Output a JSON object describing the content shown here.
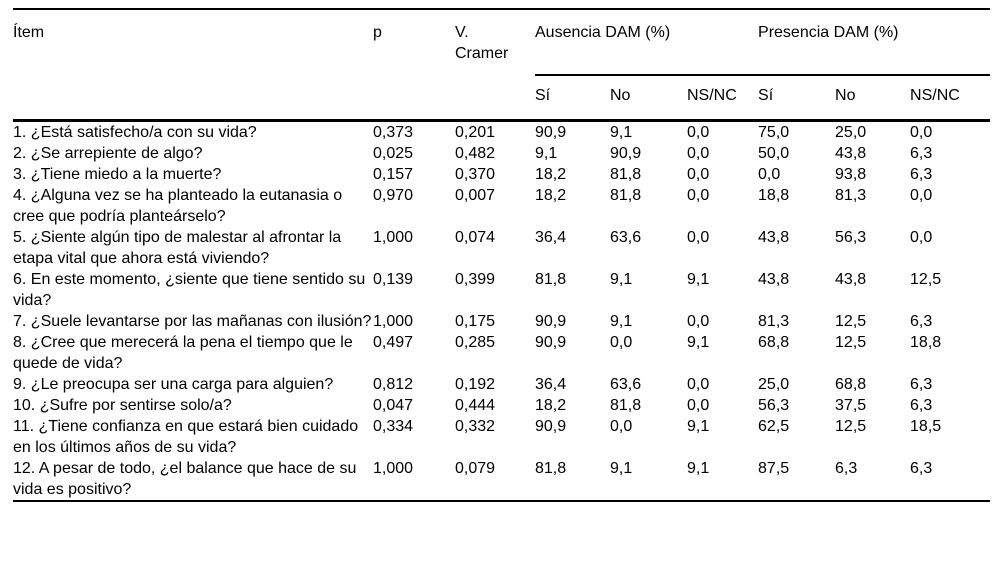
{
  "header": {
    "item": "Ítem",
    "p": "p",
    "v_cramer": "V. Cramer",
    "group_ausencia": "Ausencia DAM (%)",
    "group_presencia": "Presencia DAM (%)",
    "sub": {
      "si": "Sí",
      "no": "No",
      "nsnc": "NS/NC"
    }
  },
  "rows": [
    {
      "item": "1. ¿Está satisfecho/a con su vida?",
      "p": "0,373",
      "v": "0,201",
      "a_si": "90,9",
      "a_no": "9,1",
      "a_nsnc": "0,0",
      "p_si": "75,0",
      "p_no": "25,0",
      "p_nsnc": "0,0"
    },
    {
      "item": "2. ¿Se arrepiente de algo?",
      "p": "0,025",
      "v": "0,482",
      "a_si": "9,1",
      "a_no": "90,9",
      "a_nsnc": "0,0",
      "p_si": "50,0",
      "p_no": "43,8",
      "p_nsnc": "6,3"
    },
    {
      "item": "3. ¿Tiene miedo a la muerte?",
      "p": "0,157",
      "v": "0,370",
      "a_si": "18,2",
      "a_no": "81,8",
      "a_nsnc": "0,0",
      "p_si": "0,0",
      "p_no": "93,8",
      "p_nsnc": "6,3"
    },
    {
      "item": "4. ¿Alguna vez se ha planteado la eutanasia o cree que podría planteárselo?",
      "p": "0,970",
      "v": "0,007",
      "a_si": "18,2",
      "a_no": "81,8",
      "a_nsnc": "0,0",
      "p_si": "18,8",
      "p_no": "81,3",
      "p_nsnc": "0,0"
    },
    {
      "item": "5. ¿Siente algún tipo de malestar al afrontar la etapa vital que ahora está viviendo?",
      "p": "1,000",
      "v": "0,074",
      "a_si": "36,4",
      "a_no": "63,6",
      "a_nsnc": "0,0",
      "p_si": "43,8",
      "p_no": "56,3",
      "p_nsnc": "0,0"
    },
    {
      "item": "6. En este momento, ¿siente que tiene sentido su vida?",
      "p": "0,139",
      "v": "0,399",
      "a_si": "81,8",
      "a_no": "9,1",
      "a_nsnc": "9,1",
      "p_si": "43,8",
      "p_no": "43,8",
      "p_nsnc": "12,5"
    },
    {
      "item": "7. ¿Suele levantarse por las mañanas con ilusión?",
      "p": "1,000",
      "v": "0,175",
      "a_si": "90,9",
      "a_no": "9,1",
      "a_nsnc": "0,0",
      "p_si": "81,3",
      "p_no": "12,5",
      "p_nsnc": "6,3"
    },
    {
      "item": "8. ¿Cree que merecerá la pena el tiempo que le quede de vida?",
      "p": "0,497",
      "v": "0,285",
      "a_si": "90,9",
      "a_no": "0,0",
      "a_nsnc": "9,1",
      "p_si": "68,8",
      "p_no": "12,5",
      "p_nsnc": "18,8"
    },
    {
      "item": "9. ¿Le preocupa ser una carga para alguien?",
      "p": "0,812",
      "v": "0,192",
      "a_si": "36,4",
      "a_no": "63,6",
      "a_nsnc": "0,0",
      "p_si": "25,0",
      "p_no": "68,8",
      "p_nsnc": "6,3"
    },
    {
      "item": "10. ¿Sufre por sentirse solo/a?",
      "p": "0,047",
      "v": "0,444",
      "a_si": "18,2",
      "a_no": "81,8",
      "a_nsnc": "0,0",
      "p_si": "56,3",
      "p_no": "37,5",
      "p_nsnc": "6,3"
    },
    {
      "item": "11. ¿Tiene confianza en que estará bien cuidado en los últimos años de su vida?",
      "p": "0,334",
      "v": "0,332",
      "a_si": "90,9",
      "a_no": "0,0",
      "a_nsnc": "9,1",
      "p_si": "62,5",
      "p_no": "12,5",
      "p_nsnc": "18,5"
    },
    {
      "item": "12. A pesar de todo, ¿el balance que hace de su vida es positivo?",
      "p": "1,000",
      "v": "0,079",
      "a_si": "81,8",
      "a_no": "9,1",
      "a_nsnc": "9,1",
      "p_si": "87,5",
      "p_no": "6,3",
      "p_nsnc": "6,3"
    }
  ]
}
